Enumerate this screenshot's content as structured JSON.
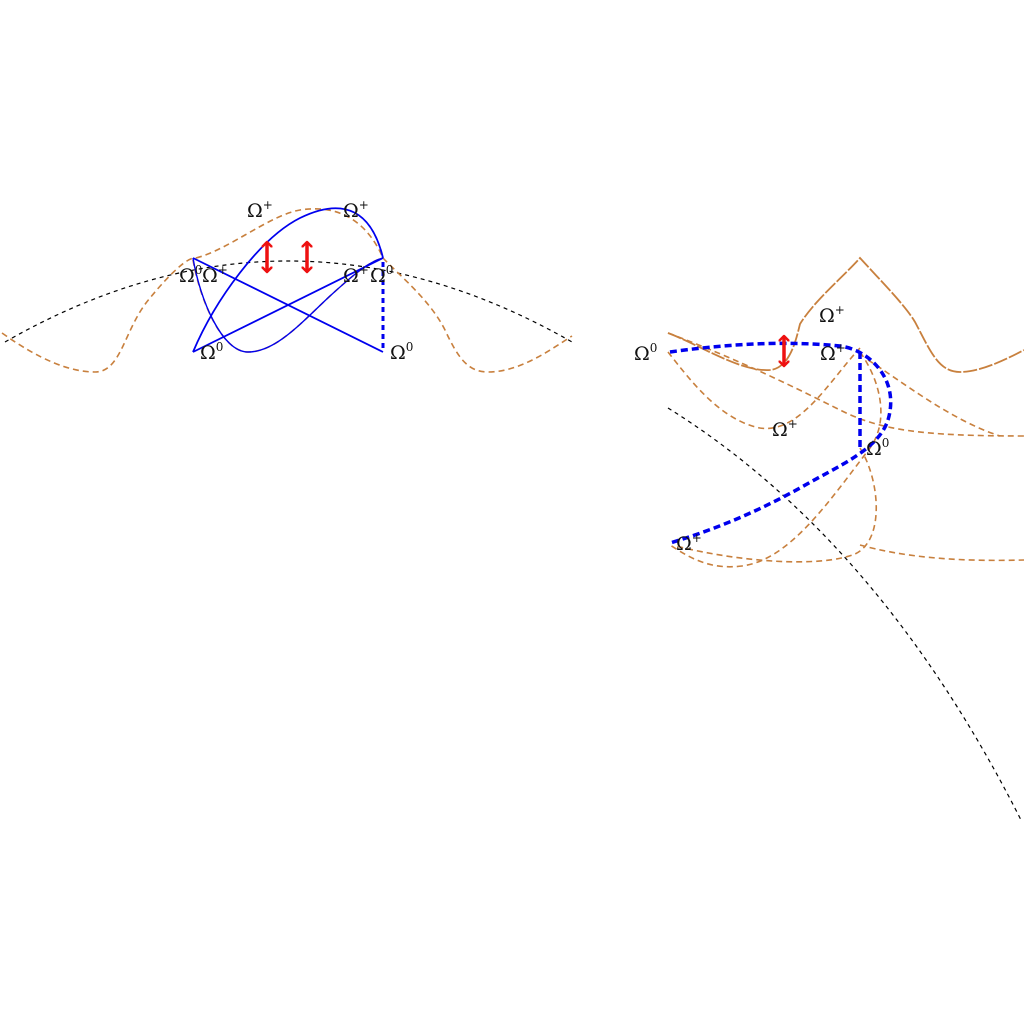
{
  "colors": {
    "reference": "#000000",
    "orange": "#c8803e",
    "blue": "#0000ee",
    "red": "#ee1111",
    "text": "#111111"
  },
  "labels": {
    "omega_base": "Ω",
    "plus": "+",
    "zero": "0"
  },
  "panels": [
    {
      "name": "left-panel",
      "labels": [
        {
          "id": "l-top-left",
          "base": "Ω",
          "sup": "+"
        },
        {
          "id": "l-top-right",
          "base": "Ω",
          "sup": "+"
        },
        {
          "id": "l-mid-left-zero",
          "base": "Ω",
          "sup": "0"
        },
        {
          "id": "l-mid-left-plus",
          "base": "Ω",
          "sup": "+"
        },
        {
          "id": "l-mid-right-plus",
          "base": "Ω",
          "sup": "+"
        },
        {
          "id": "l-mid-right-zero",
          "base": "Ω",
          "sup": "0"
        },
        {
          "id": "l-bottom-left-zero",
          "base": "Ω",
          "sup": "0"
        },
        {
          "id": "l-bottom-right-zero",
          "base": "Ω",
          "sup": "0"
        }
      ]
    },
    {
      "name": "right-panel",
      "labels": [
        {
          "id": "r-upper-plus",
          "base": "Ω",
          "sup": "+"
        },
        {
          "id": "r-left-zero",
          "base": "Ω",
          "sup": "0"
        },
        {
          "id": "r-mid-plus",
          "base": "Ω",
          "sup": "+"
        },
        {
          "id": "r-lower-plus",
          "base": "Ω",
          "sup": "+"
        },
        {
          "id": "r-center-zero",
          "base": "Ω",
          "sup": "0"
        },
        {
          "id": "r-bottom-plus",
          "base": "Ω",
          "sup": "+"
        }
      ]
    }
  ]
}
